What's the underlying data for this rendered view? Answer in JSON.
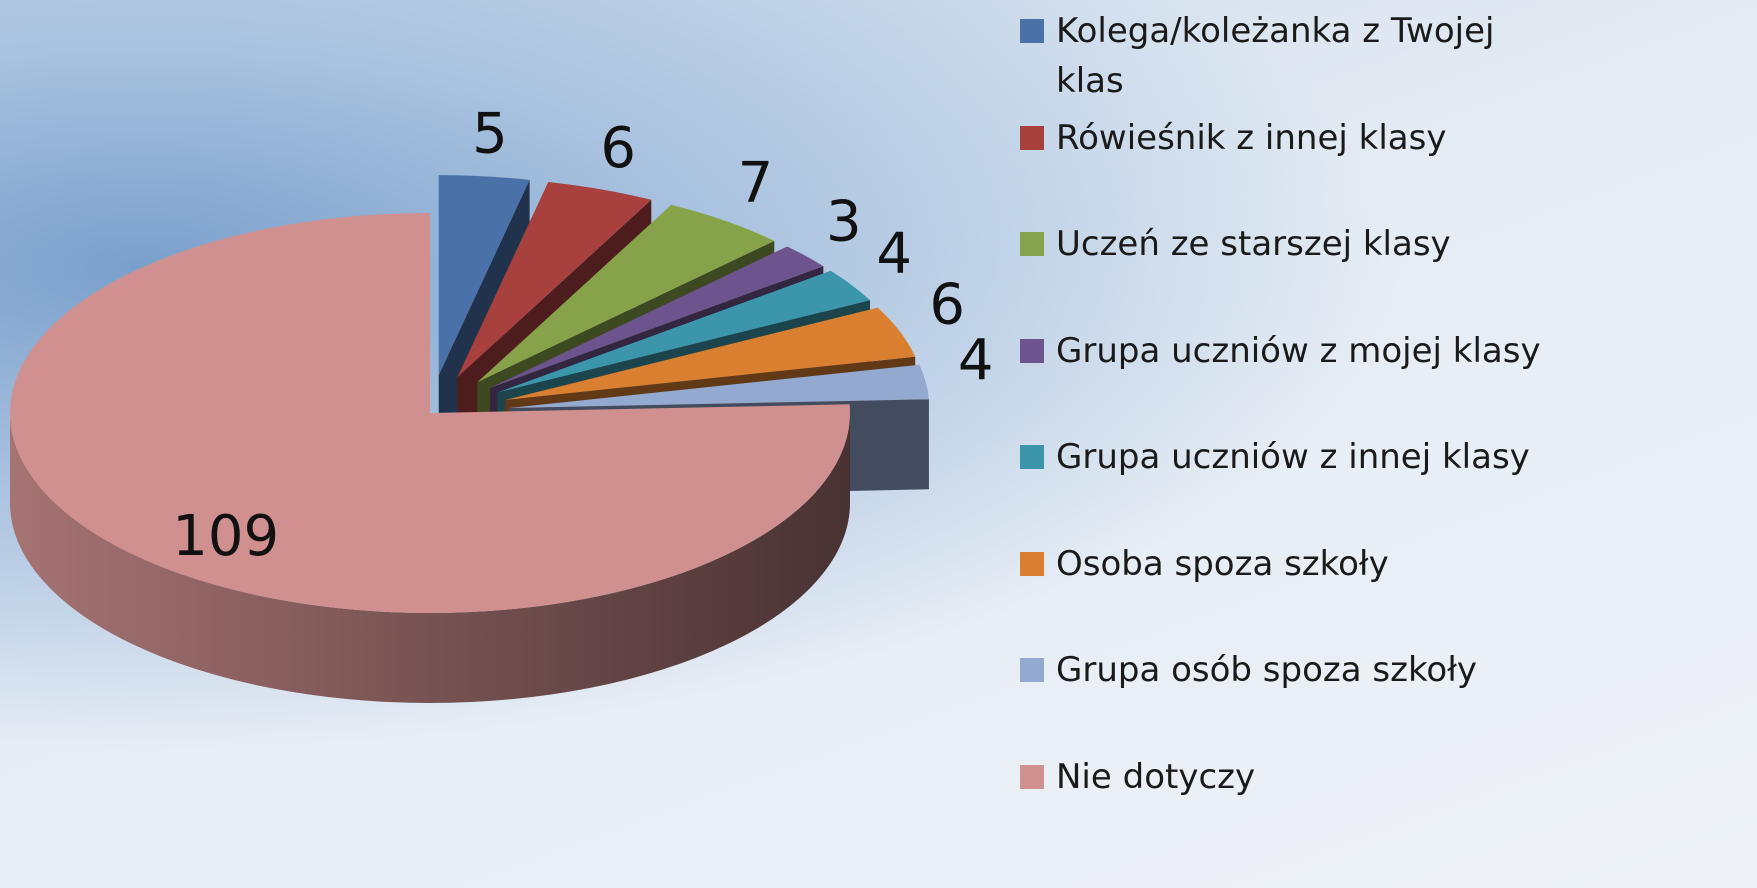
{
  "chart_data": {
    "type": "pie",
    "categories": [
      "Kolega/koleżanka z Twojej klas",
      "Rówieśnik z innej klasy",
      "Uczeń ze starszej klasy",
      "Grupa uczniów z mojej klasy",
      "Grupa uczniów z innej klasy",
      "Osoba spoza szkoły",
      "Grupa osób spoza szkoły",
      "Nie dotyczy"
    ],
    "values": [
      5,
      6,
      7,
      3,
      4,
      6,
      4,
      109
    ],
    "colors": [
      "#4a72a8",
      "#a8413e",
      "#86a34a",
      "#6e548f",
      "#3b96ac",
      "#da7f30",
      "#93a9d0",
      "#d09090"
    ],
    "legend": "right"
  }
}
